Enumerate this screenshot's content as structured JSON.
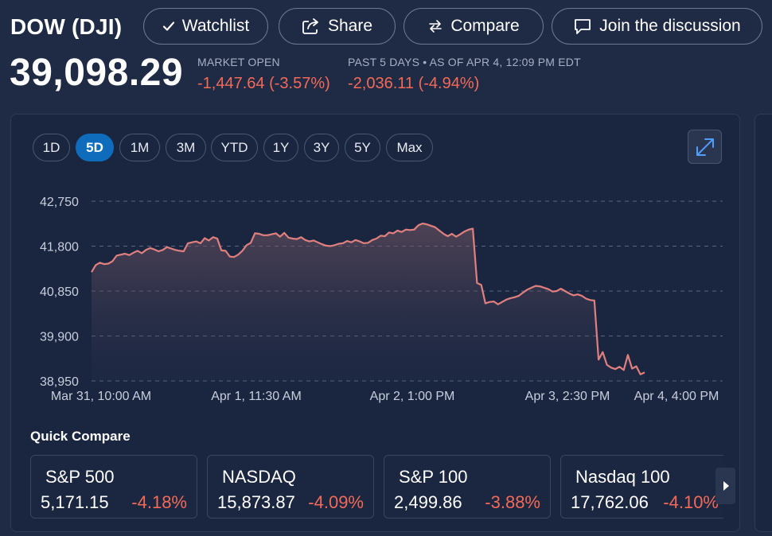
{
  "header": {
    "title": "DOW (DJI)",
    "buttons": {
      "watchlist": "Watchlist",
      "share": "Share",
      "compare": "Compare",
      "discussion": "Join the discussion"
    },
    "price": "39,098.29",
    "market_label": "MARKET OPEN",
    "market_change": "-1,447.64 (-3.57%)",
    "period_label": "PAST 5 DAYS • AS OF APR 4, 12:09 PM EDT",
    "period_change": "-2,036.11 (-4.94%)"
  },
  "ranges": [
    "1D",
    "5D",
    "1M",
    "3M",
    "YTD",
    "1Y",
    "3Y",
    "5Y",
    "Max"
  ],
  "active_range": "5D",
  "colors": {
    "line": "#e0807e",
    "negative": "#f36a58",
    "active": "#0f6cbd"
  },
  "chart_data": {
    "type": "area",
    "ylim": [
      38950,
      42750
    ],
    "yticks": [
      "42,750",
      "41,800",
      "40,850",
      "39,900",
      "38,950"
    ],
    "xticks": [
      "Mar 31, 10:00 AM",
      "Apr 1, 11:30 AM",
      "Apr 2, 1:00 PM",
      "Apr 3, 2:30 PM",
      "Apr 4, 4:00 PM"
    ],
    "grid": true,
    "series": [
      {
        "values": [
          41250,
          41400,
          41450,
          41420,
          41430,
          41480,
          41600,
          41620,
          41640,
          41610,
          41660,
          41700,
          41650,
          41720,
          41760,
          41730,
          41690,
          41720,
          41780,
          41750,
          41720,
          41700,
          41690,
          41860,
          41880,
          41900,
          41860,
          41970,
          41920,
          41990,
          41960,
          41710,
          41700,
          41580,
          41570,
          41620,
          41700,
          41820,
          41870,
          42070,
          42060,
          42030,
          42030,
          42050,
          42070,
          42000,
          42080,
          41980,
          41960,
          41950,
          41990,
          41930,
          41900,
          41920,
          41880,
          41840,
          41810,
          41800,
          41820,
          41850,
          41860,
          41910,
          41880,
          41930,
          41900,
          41860,
          41870,
          41930,
          41960,
          42020,
          42010,
          42090,
          42070,
          42130,
          42100,
          42150,
          42140,
          42150,
          42240,
          42280,
          42260,
          42230,
          42200,
          42130,
          42060,
          42010,
          42060,
          42000,
          42050,
          42110,
          42150,
          42170,
          41020,
          40980,
          40590,
          40620,
          40630,
          40570,
          40620,
          40670,
          40700,
          40720,
          40750,
          40820,
          40880,
          40920,
          40960,
          40950,
          40920,
          40890,
          40840,
          40850,
          40900,
          40850,
          40800,
          40760,
          40780,
          40750,
          40690,
          40660,
          40650,
          39400,
          39560,
          39290,
          39230,
          39200,
          39250,
          39180,
          39500,
          39210,
          39260,
          39090,
          39130
        ]
      }
    ]
  },
  "quick_compare": {
    "title": "Quick Compare",
    "items": [
      {
        "name": "S&P 500",
        "price": "5,171.15",
        "change": "-4.18%"
      },
      {
        "name": "NASDAQ",
        "price": "15,873.87",
        "change": "-4.09%"
      },
      {
        "name": "S&P 100",
        "price": "2,499.86",
        "change": "-3.88%"
      },
      {
        "name": "Nasdaq 100",
        "price": "17,762.06",
        "change": "-4.10%"
      }
    ]
  }
}
